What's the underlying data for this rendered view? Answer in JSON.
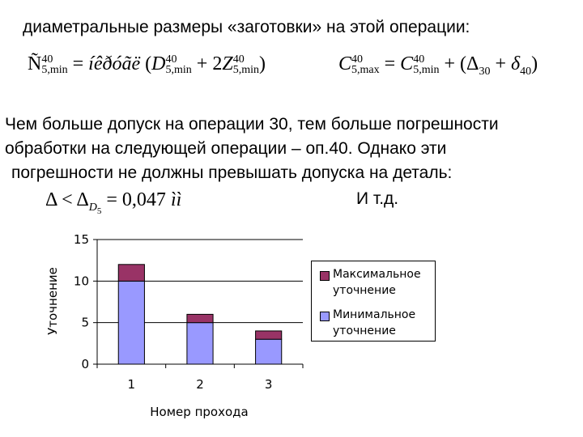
{
  "heading": "диаметральные размеры «заготовки» на этой операции:",
  "formulas": {
    "f1": {
      "var1": "Ñ",
      "var1_sub": "5,min",
      "var1_sup": "40",
      "eq": " = ",
      "word": "íêðóãë",
      "open": " (",
      "var2": "D",
      "var2_sub": "5,min",
      "var2_sup": "40",
      "plus": " + 2",
      "var3": "Z",
      "var3_sub": "5,min",
      "var3_sup": "40",
      "close": ")"
    },
    "f2": {
      "var1": "C",
      "var1_sub": "5,max",
      "var1_sup": "40",
      "eq": " = ",
      "var2": "C",
      "var2_sub": "5,min",
      "var2_sup": "40",
      "plus": " + (",
      "delta1": "Δ",
      "delta1_sub": "30",
      "plus2": " + ",
      "delta2": "δ",
      "delta2_sub": "40",
      "close": ")"
    },
    "f3": {
      "lhs": "Δ < Δ",
      "sub": "D",
      "subsub": "5",
      "rhs": " = 0,047 ",
      "unit": "ìì"
    }
  },
  "paragraph": {
    "line1": "Чем больше  допуск на операции 30, тем больше погрешности",
    "line2": "обработки на следующей операции – оп.40. Однако эти",
    "line3": " погрешности не должны превышать допуска на деталь:"
  },
  "etc": "И т.д.",
  "chart_data": {
    "type": "bar",
    "stacked": true,
    "categories": [
      "1",
      "2",
      "3"
    ],
    "series": [
      {
        "name": "Минимальное уточнение",
        "values": [
          10,
          5,
          3
        ],
        "color": "#9999ff"
      },
      {
        "name": "Максимальное уточнение",
        "values": [
          2,
          1,
          1
        ],
        "color": "#993366"
      }
    ],
    "xlabel": "Номер прохода",
    "ylabel": "Уточнение",
    "ylim": [
      0,
      15
    ],
    "yticks": [
      "0",
      "5",
      "10",
      "15"
    ],
    "grid": true,
    "legend": "right"
  },
  "legend": {
    "max": {
      "line1": "Максимальное",
      "line2": "уточнение",
      "color": "#993366"
    },
    "min": {
      "line1": "Минимальное",
      "line2": "уточнение",
      "color": "#9999ff"
    }
  }
}
